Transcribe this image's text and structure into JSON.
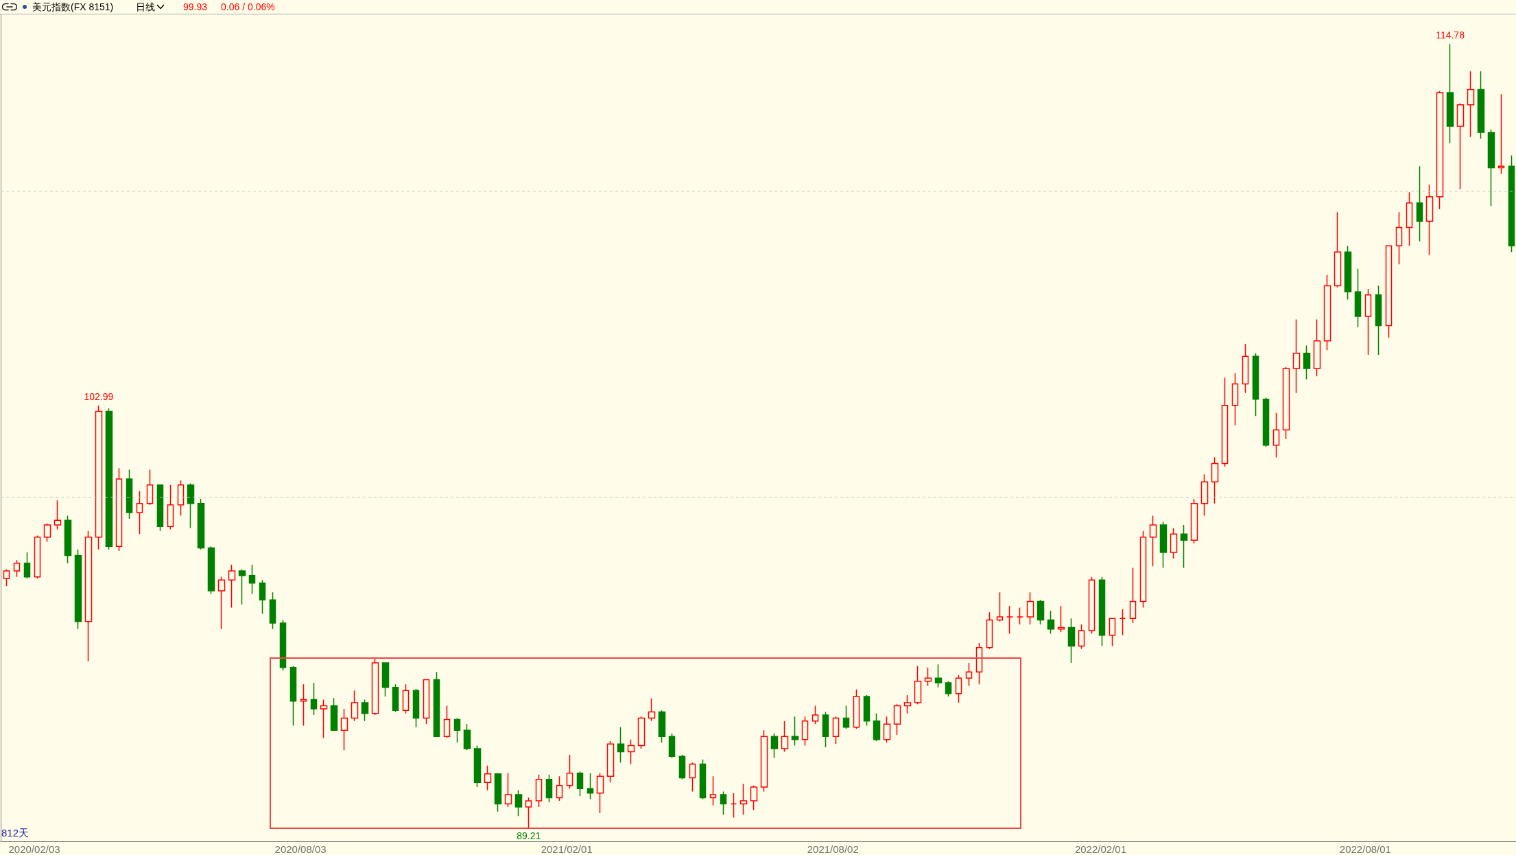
{
  "chart_data": {
    "type": "candlestick",
    "title": "美元指数(FX 8151)",
    "subtitle": "日线",
    "annotations": [
      "99.93",
      "0.06 / 0.06%",
      {
        "text": "102.99",
        "x": "2020-03-18",
        "y": 102.99
      },
      {
        "text": "89.21",
        "x": "2021-01-06",
        "y": 89.21
      },
      {
        "text": "114.78",
        "x": "2022-09-28",
        "y": 114.78
      },
      "812天"
    ],
    "x": [
      "2020-01-15",
      "2020-01-22",
      "2020-01-29",
      "2020-02-05",
      "2020-02-12",
      "2020-02-19",
      "2020-02-26",
      "2020-03-04",
      "2020-03-11",
      "2020-03-18",
      "2020-03-25",
      "2020-04-01",
      "2020-04-08",
      "2020-04-15",
      "2020-04-22",
      "2020-04-29",
      "2020-05-06",
      "2020-05-13",
      "2020-05-20",
      "2020-05-27",
      "2020-06-03",
      "2020-06-10",
      "2020-06-17",
      "2020-06-24",
      "2020-07-01",
      "2020-07-08",
      "2020-07-15",
      "2020-07-22",
      "2020-07-29",
      "2020-08-05",
      "2020-08-12",
      "2020-08-19",
      "2020-08-26",
      "2020-09-02",
      "2020-09-09",
      "2020-09-16",
      "2020-09-23",
      "2020-09-30",
      "2020-10-07",
      "2020-10-14",
      "2020-10-21",
      "2020-10-28",
      "2020-11-04",
      "2020-11-11",
      "2020-11-18",
      "2020-11-25",
      "2020-12-02",
      "2020-12-09",
      "2020-12-16",
      "2020-12-23",
      "2020-12-30",
      "2021-01-06",
      "2021-01-13",
      "2021-01-20",
      "2021-01-27",
      "2021-02-03",
      "2021-02-10",
      "2021-02-17",
      "2021-02-24",
      "2021-03-03",
      "2021-03-10",
      "2021-03-17",
      "2021-03-24",
      "2021-03-31",
      "2021-04-07",
      "2021-04-14",
      "2021-04-21",
      "2021-04-28",
      "2021-05-05",
      "2021-05-12",
      "2021-05-19",
      "2021-05-26",
      "2021-06-02",
      "2021-06-09",
      "2021-06-16",
      "2021-06-23",
      "2021-06-30",
      "2021-07-07",
      "2021-07-14",
      "2021-07-21",
      "2021-07-28",
      "2021-08-04",
      "2021-08-11",
      "2021-08-18",
      "2021-08-25",
      "2021-09-01",
      "2021-09-08",
      "2021-09-15",
      "2021-09-22",
      "2021-09-29",
      "2021-10-06",
      "2021-10-13",
      "2021-10-20",
      "2021-10-27",
      "2021-11-03",
      "2021-11-10",
      "2021-11-17",
      "2021-11-24",
      "2021-12-01",
      "2021-12-08",
      "2021-12-15",
      "2021-12-22",
      "2021-12-29",
      "2022-01-05",
      "2022-01-12",
      "2022-01-19",
      "2022-01-26",
      "2022-02-02",
      "2022-02-09",
      "2022-02-16",
      "2022-02-23",
      "2022-03-02",
      "2022-03-09",
      "2022-03-16",
      "2022-03-23",
      "2022-03-30",
      "2022-04-06",
      "2022-04-13",
      "2022-04-20",
      "2022-04-27",
      "2022-05-04",
      "2022-05-11",
      "2022-05-18",
      "2022-05-25",
      "2022-06-01",
      "2022-06-08",
      "2022-06-15",
      "2022-06-22",
      "2022-06-29",
      "2022-07-06",
      "2022-07-13",
      "2022-07-20",
      "2022-07-27",
      "2022-08-03",
      "2022-08-10",
      "2022-08-17",
      "2022-08-24",
      "2022-08-31",
      "2022-09-07",
      "2022-09-14",
      "2022-09-21",
      "2022-09-28",
      "2022-10-05",
      "2022-10-12",
      "2022-10-19",
      "2022-10-26",
      "2022-11-02",
      "2022-11-09"
    ],
    "ohlc": [
      [
        97.35,
        97.65,
        97.1,
        97.6
      ],
      [
        97.6,
        97.95,
        97.4,
        97.85
      ],
      [
        97.85,
        98.2,
        97.35,
        97.4
      ],
      [
        97.4,
        98.75,
        97.35,
        98.7
      ],
      [
        98.7,
        99.15,
        98.55,
        99.1
      ],
      [
        99.1,
        99.9,
        98.95,
        99.25
      ],
      [
        99.25,
        99.4,
        97.85,
        98.1
      ],
      [
        98.1,
        98.3,
        95.7,
        95.95
      ],
      [
        95.95,
        98.9,
        94.65,
        98.7
      ],
      [
        98.7,
        102.99,
        98.3,
        102.8
      ],
      [
        102.8,
        102.9,
        98.3,
        98.4
      ],
      [
        98.4,
        100.95,
        98.25,
        100.6
      ],
      [
        100.6,
        100.9,
        99.3,
        99.5
      ],
      [
        99.5,
        100.2,
        98.8,
        99.8
      ],
      [
        99.8,
        100.9,
        99.75,
        100.4
      ],
      [
        100.4,
        100.4,
        98.9,
        99.05
      ],
      [
        99.05,
        100.4,
        98.95,
        99.75
      ],
      [
        99.75,
        100.55,
        99.4,
        100.4
      ],
      [
        100.4,
        100.45,
        99.0,
        99.8
      ],
      [
        99.8,
        99.95,
        98.3,
        98.35
      ],
      [
        98.35,
        98.4,
        96.85,
        96.95
      ],
      [
        96.95,
        97.4,
        95.7,
        97.3
      ],
      [
        97.3,
        97.8,
        96.4,
        97.6
      ],
      [
        97.6,
        97.65,
        96.5,
        97.45
      ],
      [
        97.45,
        97.8,
        96.85,
        97.2
      ],
      [
        97.2,
        97.3,
        96.2,
        96.65
      ],
      [
        96.65,
        96.9,
        95.7,
        95.9
      ],
      [
        95.9,
        96.0,
        94.35,
        94.45
      ],
      [
        94.45,
        94.5,
        92.55,
        93.35
      ],
      [
        93.35,
        93.9,
        92.55,
        93.4
      ],
      [
        93.4,
        93.95,
        92.9,
        93.1
      ],
      [
        93.1,
        93.4,
        92.15,
        93.2
      ],
      [
        93.2,
        93.45,
        92.4,
        92.4
      ],
      [
        92.4,
        93.1,
        91.75,
        92.8
      ],
      [
        92.8,
        93.7,
        92.7,
        93.3
      ],
      [
        93.3,
        93.4,
        92.7,
        92.95
      ],
      [
        92.95,
        94.75,
        92.9,
        94.6
      ],
      [
        94.6,
        94.6,
        93.5,
        93.8
      ],
      [
        93.8,
        93.9,
        93.0,
        93.05
      ],
      [
        93.05,
        93.9,
        92.95,
        93.7
      ],
      [
        93.7,
        93.75,
        92.5,
        92.8
      ],
      [
        92.8,
        94.05,
        92.6,
        94.05
      ],
      [
        94.05,
        94.3,
        92.2,
        92.2
      ],
      [
        92.2,
        93.2,
        92.15,
        92.75
      ],
      [
        92.75,
        92.8,
        92.0,
        92.4
      ],
      [
        92.4,
        92.6,
        91.75,
        91.8
      ],
      [
        91.8,
        91.9,
        90.55,
        90.7
      ],
      [
        90.7,
        91.25,
        90.45,
        90.98
      ],
      [
        90.98,
        91.0,
        89.75,
        90.0
      ],
      [
        90.0,
        91.0,
        89.9,
        90.3
      ],
      [
        90.3,
        90.45,
        89.6,
        89.9
      ],
      [
        89.9,
        90.2,
        89.21,
        90.1
      ],
      [
        90.1,
        90.95,
        89.9,
        90.8
      ],
      [
        90.8,
        90.95,
        90.05,
        90.2
      ],
      [
        90.2,
        90.9,
        90.1,
        90.6
      ],
      [
        90.6,
        91.6,
        90.5,
        91.0
      ],
      [
        91.0,
        91.05,
        90.25,
        90.5
      ],
      [
        90.5,
        91.0,
        90.15,
        90.35
      ],
      [
        90.35,
        91.0,
        89.7,
        90.9
      ],
      [
        90.9,
        92.05,
        90.7,
        91.95
      ],
      [
        91.95,
        92.5,
        91.35,
        91.7
      ],
      [
        91.7,
        92.1,
        91.3,
        91.9
      ],
      [
        91.9,
        92.85,
        91.8,
        92.8
      ],
      [
        92.8,
        93.44,
        92.7,
        93.0
      ],
      [
        93.0,
        93.05,
        92.0,
        92.2
      ],
      [
        92.2,
        92.3,
        91.5,
        91.55
      ],
      [
        91.55,
        91.6,
        90.8,
        90.85
      ],
      [
        90.85,
        91.35,
        90.4,
        91.3
      ],
      [
        91.3,
        91.45,
        90.15,
        90.2
      ],
      [
        90.2,
        90.9,
        89.95,
        90.3
      ],
      [
        90.3,
        90.4,
        89.65,
        90.0
      ],
      [
        90.0,
        90.35,
        89.55,
        90.0
      ],
      [
        90.0,
        90.65,
        89.65,
        90.1
      ],
      [
        90.1,
        90.6,
        89.8,
        90.55
      ],
      [
        90.55,
        92.4,
        90.4,
        92.2
      ],
      [
        92.2,
        92.3,
        91.5,
        91.8
      ],
      [
        91.8,
        92.7,
        91.7,
        92.2
      ],
      [
        92.2,
        92.85,
        91.9,
        92.1
      ],
      [
        92.1,
        92.85,
        91.9,
        92.7
      ],
      [
        92.7,
        93.2,
        92.6,
        92.9
      ],
      [
        92.9,
        93.0,
        91.85,
        92.2
      ],
      [
        92.2,
        92.85,
        91.95,
        92.8
      ],
      [
        92.8,
        93.2,
        92.45,
        92.5
      ],
      [
        92.5,
        93.73,
        92.45,
        93.5
      ],
      [
        93.5,
        93.55,
        92.55,
        92.7
      ],
      [
        92.7,
        92.95,
        92.05,
        92.1
      ],
      [
        92.1,
        92.85,
        92.0,
        92.6
      ],
      [
        92.6,
        93.25,
        92.25,
        93.2
      ],
      [
        93.2,
        93.55,
        92.95,
        93.3
      ],
      [
        93.3,
        94.5,
        93.25,
        94.0
      ],
      [
        94.0,
        94.45,
        93.85,
        94.1
      ],
      [
        94.1,
        94.55,
        93.8,
        93.95
      ],
      [
        93.95,
        94.0,
        93.5,
        93.6
      ],
      [
        93.6,
        94.2,
        93.3,
        94.1
      ],
      [
        94.1,
        94.6,
        93.85,
        94.3
      ],
      [
        94.3,
        95.25,
        93.9,
        95.1
      ],
      [
        95.1,
        96.25,
        95.05,
        96.0
      ],
      [
        96.0,
        96.9,
        95.95,
        96.1
      ],
      [
        96.1,
        96.45,
        95.55,
        96.1
      ],
      [
        96.1,
        96.4,
        95.85,
        96.1
      ],
      [
        96.1,
        96.9,
        95.85,
        96.6
      ],
      [
        96.6,
        96.65,
        95.85,
        96.0
      ],
      [
        96.0,
        96.3,
        95.55,
        95.7
      ],
      [
        95.7,
        96.45,
        95.6,
        95.75
      ],
      [
        95.75,
        96.05,
        94.6,
        95.15
      ],
      [
        95.15,
        95.85,
        95.05,
        95.65
      ],
      [
        95.65,
        97.4,
        95.55,
        97.3
      ],
      [
        97.3,
        97.4,
        95.15,
        95.5
      ],
      [
        95.5,
        96.05,
        95.15,
        96.05
      ],
      [
        96.05,
        96.35,
        95.5,
        96.05
      ],
      [
        96.05,
        97.7,
        95.9,
        96.6
      ],
      [
        96.6,
        98.9,
        96.4,
        98.7
      ],
      [
        98.7,
        99.4,
        97.75,
        99.1
      ],
      [
        99.1,
        99.2,
        97.7,
        98.2
      ],
      [
        98.2,
        99.0,
        98.0,
        98.8
      ],
      [
        98.8,
        99.1,
        97.7,
        98.6
      ],
      [
        98.6,
        99.95,
        98.5,
        99.8
      ],
      [
        99.8,
        100.75,
        99.4,
        100.5
      ],
      [
        100.5,
        101.3,
        99.8,
        101.1
      ],
      [
        101.1,
        103.9,
        101.0,
        103.0
      ],
      [
        103.0,
        104.05,
        102.35,
        103.7
      ],
      [
        103.7,
        105.0,
        103.4,
        104.6
      ],
      [
        104.6,
        104.7,
        102.65,
        103.2
      ],
      [
        103.2,
        103.25,
        101.65,
        101.7
      ],
      [
        101.7,
        102.75,
        101.3,
        102.2
      ],
      [
        102.2,
        104.25,
        101.9,
        104.2
      ],
      [
        104.2,
        105.8,
        103.4,
        104.7
      ],
      [
        104.7,
        104.95,
        103.85,
        104.2
      ],
      [
        104.2,
        105.8,
        103.95,
        105.1
      ],
      [
        105.1,
        107.25,
        104.8,
        106.9
      ],
      [
        106.9,
        109.3,
        106.85,
        108.0
      ],
      [
        108.0,
        108.2,
        106.45,
        106.7
      ],
      [
        106.7,
        107.45,
        105.55,
        105.9
      ],
      [
        105.9,
        106.8,
        104.65,
        106.6
      ],
      [
        106.6,
        106.9,
        104.65,
        105.6
      ],
      [
        105.6,
        108.2,
        105.2,
        108.2
      ],
      [
        108.2,
        109.3,
        107.6,
        108.8
      ],
      [
        108.8,
        109.95,
        108.2,
        109.6
      ],
      [
        109.6,
        110.8,
        108.35,
        109.0
      ],
      [
        109.0,
        110.2,
        107.9,
        109.8
      ],
      [
        109.8,
        113.25,
        109.4,
        113.2
      ],
      [
        113.2,
        114.78,
        111.55,
        112.1
      ],
      [
        112.1,
        112.85,
        110.05,
        112.8
      ],
      [
        112.8,
        113.9,
        111.75,
        113.3
      ],
      [
        113.3,
        113.9,
        111.7,
        111.9
      ],
      [
        111.9,
        112.0,
        109.5,
        110.75
      ],
      [
        110.75,
        113.15,
        110.55,
        110.8
      ],
      [
        110.8,
        111.15,
        108.0,
        108.2
      ]
    ],
    "xlim": [
      "2020-01-11",
      "2022-11-12"
    ],
    "ylim": [
      88.78,
      115.75
    ],
    "xticks": [
      {
        "value": "2020-02-03",
        "label": "2020/02/03"
      },
      {
        "value": "2020-08-03",
        "label": "2020/08/03"
      },
      {
        "value": "2021-02-01",
        "label": "2021/02/01"
      },
      {
        "value": "2021-08-02",
        "label": "2021/08/02"
      },
      {
        "value": "2022-02-01",
        "label": "2022/02/01"
      },
      {
        "value": "2022-08-01",
        "label": "2022/08/01"
      }
    ],
    "ref_lines": [
      {
        "axis": "y",
        "value": 100,
        "color": "#c4c4c4",
        "line_style": "dashed"
      },
      {
        "axis": "y",
        "value": 110,
        "color": "#c4c4c4",
        "line_style": "dashed"
      }
    ],
    "tick_labels": "x"
  }
}
